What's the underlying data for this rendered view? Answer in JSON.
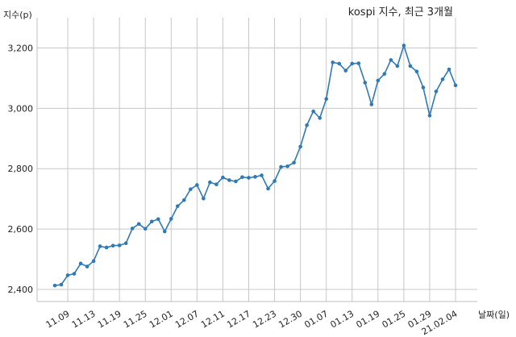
{
  "chart_data": {
    "type": "line",
    "title": "kospi 지수, 최근 3개월",
    "ylabel": "지수(p)",
    "xlabel": "날짜(일)",
    "ylim": [
      2360,
      3300
    ],
    "yticks": [
      2400,
      2600,
      2800,
      3000,
      3200
    ],
    "ytick_labels": [
      "2,400",
      "2,600",
      "2,800",
      "3,000",
      "3,200"
    ],
    "grid": true,
    "color": "#2e7ab5",
    "x_tick_labels": [
      "11.09",
      "11.13",
      "11.19",
      "11.25",
      "12.01",
      "12.07",
      "12.11",
      "12.17",
      "12.23",
      "12.30",
      "01.07",
      "01.13",
      "01.19",
      "01.25",
      "01.29",
      "21.02.04"
    ],
    "x_tick_index": [
      2,
      6,
      10,
      14,
      18,
      22,
      26,
      30,
      34,
      38,
      42,
      46,
      50,
      54,
      58,
      62
    ],
    "values": [
      2413,
      2416,
      2447,
      2452,
      2486,
      2476,
      2494,
      2543,
      2539,
      2545,
      2546,
      2553,
      2602,
      2617,
      2601,
      2625,
      2633,
      2592,
      2634,
      2676,
      2696,
      2732,
      2746,
      2701,
      2755,
      2748,
      2771,
      2762,
      2758,
      2772,
      2770,
      2773,
      2778,
      2734,
      2759,
      2806,
      2808,
      2820,
      2873,
      2944,
      2990,
      2968,
      3031,
      3152,
      3148,
      3125,
      3148,
      3149,
      3085,
      3013,
      3092,
      3114,
      3160,
      3140,
      3208,
      3140,
      3122,
      3069,
      2976,
      3056,
      3096,
      3129,
      3076
    ]
  }
}
